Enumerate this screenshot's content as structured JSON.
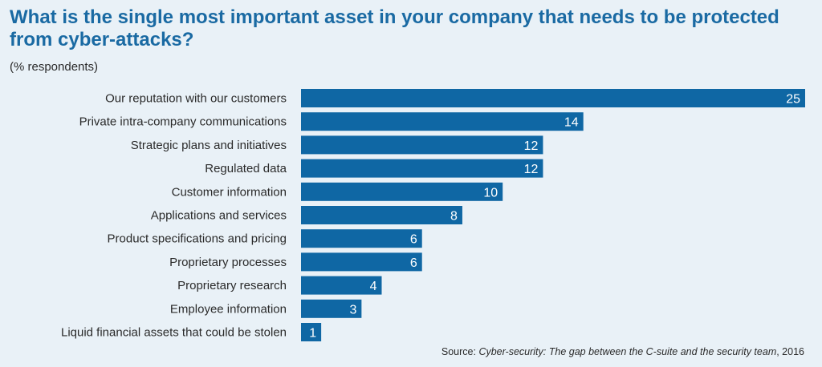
{
  "header": {
    "title": "What is the single most important asset in your company that needs to be protected from cyber-attacks?",
    "subtitle": "(% respondents)"
  },
  "footer": {
    "source_prefix": "Source: ",
    "source_title": "Cyber-security: The gap between the C-suite and the security team",
    "source_year": ", 2016"
  },
  "colors": {
    "bar": "#0f67a4",
    "background": "#e9f1f7",
    "title": "#1a6aa3"
  },
  "chart_data": {
    "type": "bar",
    "orientation": "horizontal",
    "categories": [
      "Our reputation with our customers",
      "Private intra-company communications",
      "Strategic plans and initiatives",
      "Regulated data",
      "Customer information",
      "Applications and services",
      "Product specifications and pricing",
      "Proprietary processes",
      "Proprietary research",
      "Employee information",
      "Liquid financial assets that could be stolen"
    ],
    "values": [
      25,
      14,
      12,
      12,
      10,
      8,
      6,
      6,
      4,
      3,
      1
    ],
    "title": "What is the single most important asset in your company that needs to be protected from cyber-attacks?",
    "xlabel": "",
    "ylabel": "",
    "xlim": [
      0,
      25
    ],
    "grid": false,
    "data_labels": true
  }
}
